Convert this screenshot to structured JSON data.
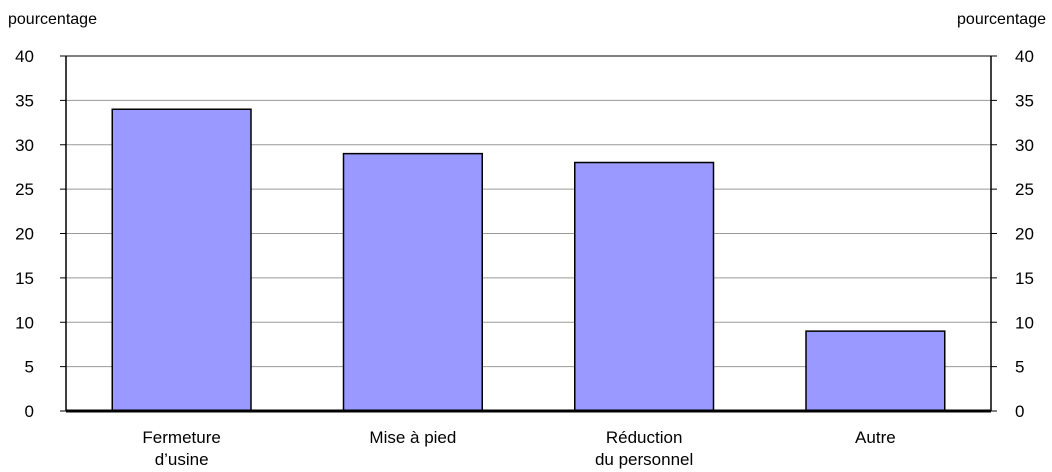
{
  "chart_data": {
    "type": "bar",
    "categories": [
      [
        "Fermeture",
        "d’usine"
      ],
      [
        "Mise à pied"
      ],
      [
        "Réduction",
        "du personnel"
      ],
      [
        "Autre"
      ]
    ],
    "values": [
      34,
      29,
      28,
      9
    ],
    "ylabel_left": "pourcentage",
    "ylabel_right": "pourcentage",
    "ylim": [
      0,
      40
    ],
    "yticks": [
      0,
      5,
      10,
      15,
      20,
      25,
      30,
      35,
      40
    ],
    "grid": true,
    "bar_color": "#9999ff",
    "bar_edge_color": "#000000"
  }
}
